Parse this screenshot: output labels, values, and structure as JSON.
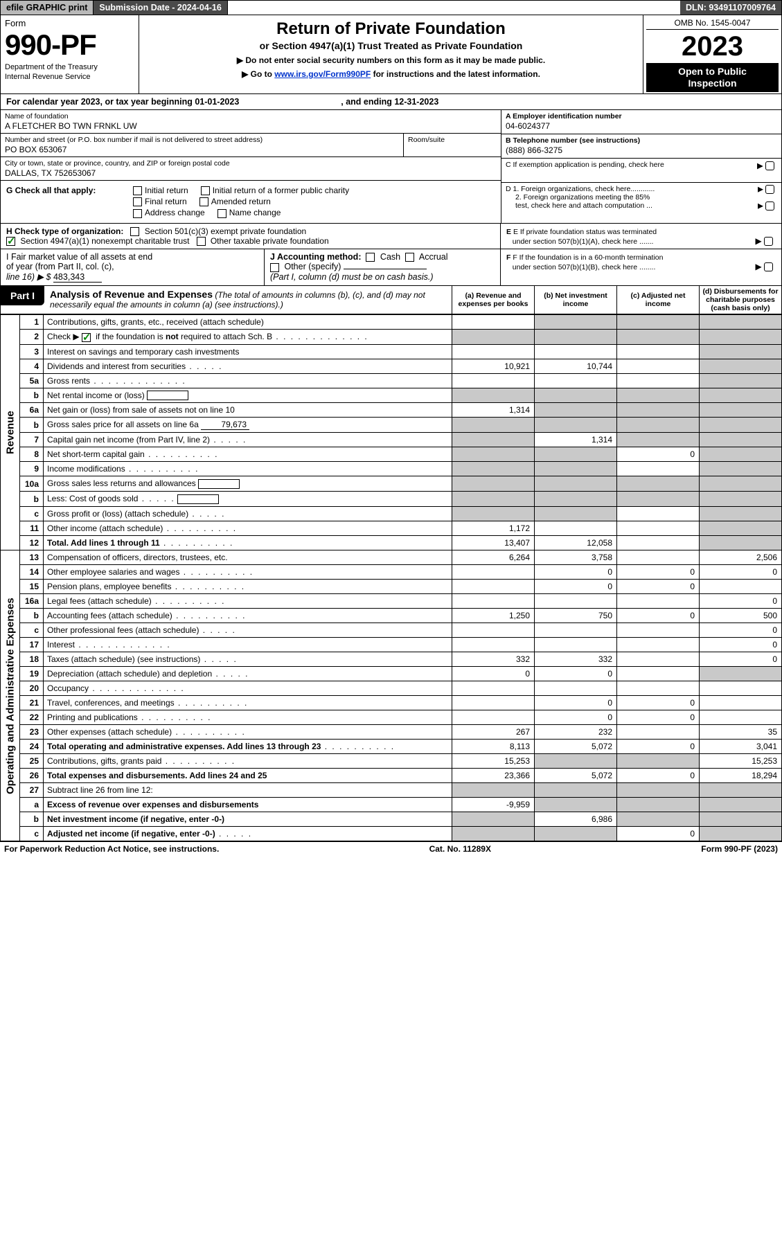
{
  "colors": {
    "topbar_grey": "#b8b8b8",
    "topbar_dark": "#4a4a4a",
    "black": "#000000",
    "grey_cell": "#c9c9c9",
    "link": "#0033cc",
    "check_green": "#0a8a0a"
  },
  "topbar": {
    "efile": "efile GRAPHIC print",
    "submission": "Submission Date - 2024-04-16",
    "dln": "DLN: 93491107009764"
  },
  "header": {
    "form_word": "Form",
    "form_num": "990-PF",
    "dept1": "Department of the Treasury",
    "dept2": "Internal Revenue Service",
    "title": "Return of Private Foundation",
    "subtitle": "or Section 4947(a)(1) Trust Treated as Private Foundation",
    "inst1": "▶ Do not enter social security numbers on this form as it may be made public.",
    "inst2_pre": "▶ Go to ",
    "inst2_link": "www.irs.gov/Form990PF",
    "inst2_post": " for instructions and the latest information.",
    "omb": "OMB No. 1545-0047",
    "year": "2023",
    "open1": "Open to Public",
    "open2": "Inspection"
  },
  "calrow": {
    "t1": "For calendar year 2023, or tax year beginning 01-01-2023",
    "t2": ", and ending 12-31-2023"
  },
  "ident": {
    "name_lbl": "Name of foundation",
    "name_val": "A FLETCHER BO TWN FRNKL UW",
    "addr_lbl": "Number and street (or P.O. box number if mail is not delivered to street address)",
    "addr_val": "PO BOX 653067",
    "suite_lbl": "Room/suite",
    "city_lbl": "City or town, state or province, country, and ZIP or foreign postal code",
    "city_val": "DALLAS, TX  752653067",
    "A_lbl": "A Employer identification number",
    "A_val": "04-6024377",
    "B_lbl": "B Telephone number (see instructions)",
    "B_val": "(888) 866-3275",
    "C_lbl": "C If exemption application is pending, check here",
    "D1": "D 1. Foreign organizations, check here............",
    "D2a": "2. Foreign organizations meeting the 85%",
    "D2b": "test, check here and attach computation ...",
    "E1": "E If private foundation status was terminated",
    "E2": "under section 507(b)(1)(A), check here .......",
    "F1": "F If the foundation is in a 60-month termination",
    "F2": "under section 507(b)(1)(B), check here ........"
  },
  "G": {
    "lbl": "G Check all that apply:",
    "c1": "Initial return",
    "c2": "Initial return of a former public charity",
    "c3": "Final return",
    "c4": "Amended return",
    "c5": "Address change",
    "c6": "Name change"
  },
  "H": {
    "lbl": "H Check type of organization:",
    "c1": "Section 501(c)(3) exempt private foundation",
    "c2": "Section 4947(a)(1) nonexempt charitable trust",
    "c3": "Other taxable private foundation"
  },
  "I": {
    "t1": "I Fair market value of all assets at end",
    "t2": "of year (from Part II, col. (c),",
    "t3_pre": "line 16) ▶ $ ",
    "t3_val": "483,343"
  },
  "J": {
    "lbl": "J Accounting method:",
    "c1": "Cash",
    "c2": "Accrual",
    "c3": "Other (specify)",
    "note": "(Part I, column (d) must be on cash basis.)"
  },
  "part1": {
    "tag": "Part I",
    "title": "Analysis of Revenue and Expenses",
    "sub": " (The total of amounts in columns (b), (c), and (d) may not necessarily equal the amounts in column (a) (see instructions).)",
    "col_a": "(a) Revenue and expenses per books",
    "col_b": "(b) Net investment income",
    "col_c": "(c) Adjusted net income",
    "col_d": "(d) Disbursements for charitable purposes (cash basis only)"
  },
  "sides": {
    "rev": "Revenue",
    "exp": "Operating and Administrative Expenses"
  },
  "rows": [
    {
      "n": "1",
      "d": "Contributions, gifts, grants, etc., received (attach schedule)",
      "a": "",
      "b": "g",
      "c": "g",
      "dv": "g"
    },
    {
      "n": "2",
      "d": "Check ▶ [x] if the foundation is not required to attach Sch. B",
      "a": "g",
      "b": "g",
      "c": "g",
      "dv": "g",
      "check": true,
      "dots": "long"
    },
    {
      "n": "3",
      "d": "Interest on savings and temporary cash investments",
      "a": "",
      "b": "",
      "c": "",
      "dv": "g"
    },
    {
      "n": "4",
      "d": "Dividends and interest from securities",
      "a": "10,921",
      "b": "10,744",
      "c": "",
      "dv": "g",
      "dots": "short"
    },
    {
      "n": "5a",
      "d": "Gross rents",
      "a": "",
      "b": "",
      "c": "",
      "dv": "g",
      "dots": "long"
    },
    {
      "n": "b",
      "d": "Net rental income or (loss)",
      "a": "g",
      "b": "g",
      "c": "g",
      "dv": "g",
      "box": true
    },
    {
      "n": "6a",
      "d": "Net gain or (loss) from sale of assets not on line 10",
      "a": "1,314",
      "b": "g",
      "c": "g",
      "dv": "g"
    },
    {
      "n": "b",
      "d": "Gross sales price for all assets on line 6a",
      "a": "g",
      "b": "g",
      "c": "g",
      "dv": "g",
      "sub": "79,673"
    },
    {
      "n": "7",
      "d": "Capital gain net income (from Part IV, line 2)",
      "a": "g",
      "b": "1,314",
      "c": "g",
      "dv": "g",
      "dots": "short"
    },
    {
      "n": "8",
      "d": "Net short-term capital gain",
      "a": "g",
      "b": "g",
      "c": "0",
      "dv": "g",
      "dots": "leader"
    },
    {
      "n": "9",
      "d": "Income modifications",
      "a": "g",
      "b": "g",
      "c": "",
      "dv": "g",
      "dots": "leader"
    },
    {
      "n": "10a",
      "d": "Gross sales less returns and allowances",
      "a": "g",
      "b": "g",
      "c": "g",
      "dv": "g",
      "box": true
    },
    {
      "n": "b",
      "d": "Less: Cost of goods sold",
      "a": "g",
      "b": "g",
      "c": "g",
      "dv": "g",
      "box": true,
      "dots": "short"
    },
    {
      "n": "c",
      "d": "Gross profit or (loss) (attach schedule)",
      "a": "g",
      "b": "g",
      "c": "",
      "dv": "g",
      "dots": "short"
    },
    {
      "n": "11",
      "d": "Other income (attach schedule)",
      "a": "1,172",
      "b": "",
      "c": "",
      "dv": "g",
      "dots": "leader"
    },
    {
      "n": "12",
      "d": "Total. Add lines 1 through 11",
      "a": "13,407",
      "b": "12,058",
      "c": "",
      "dv": "g",
      "bold": true,
      "dots": "leader"
    },
    {
      "n": "13",
      "d": "Compensation of officers, directors, trustees, etc.",
      "a": "6,264",
      "b": "3,758",
      "c": "",
      "dv": "2,506"
    },
    {
      "n": "14",
      "d": "Other employee salaries and wages",
      "a": "",
      "b": "0",
      "c": "0",
      "dv": "0",
      "dots": "leader"
    },
    {
      "n": "15",
      "d": "Pension plans, employee benefits",
      "a": "",
      "b": "0",
      "c": "0",
      "dv": "",
      "dots": "leader"
    },
    {
      "n": "16a",
      "d": "Legal fees (attach schedule)",
      "a": "",
      "b": "",
      "c": "",
      "dv": "0",
      "dots": "leader"
    },
    {
      "n": "b",
      "d": "Accounting fees (attach schedule)",
      "a": "1,250",
      "b": "750",
      "c": "0",
      "dv": "500",
      "dots": "leader"
    },
    {
      "n": "c",
      "d": "Other professional fees (attach schedule)",
      "a": "",
      "b": "",
      "c": "",
      "dv": "0",
      "dots": "short"
    },
    {
      "n": "17",
      "d": "Interest",
      "a": "",
      "b": "",
      "c": "",
      "dv": "0",
      "dots": "long"
    },
    {
      "n": "18",
      "d": "Taxes (attach schedule) (see instructions)",
      "a": "332",
      "b": "332",
      "c": "",
      "dv": "0",
      "dots": "short"
    },
    {
      "n": "19",
      "d": "Depreciation (attach schedule) and depletion",
      "a": "0",
      "b": "0",
      "c": "",
      "dv": "g",
      "dots": "short"
    },
    {
      "n": "20",
      "d": "Occupancy",
      "a": "",
      "b": "",
      "c": "",
      "dv": "",
      "dots": "long"
    },
    {
      "n": "21",
      "d": "Travel, conferences, and meetings",
      "a": "",
      "b": "0",
      "c": "0",
      "dv": "",
      "dots": "leader"
    },
    {
      "n": "22",
      "d": "Printing and publications",
      "a": "",
      "b": "0",
      "c": "0",
      "dv": "",
      "dots": "leader"
    },
    {
      "n": "23",
      "d": "Other expenses (attach schedule)",
      "a": "267",
      "b": "232",
      "c": "",
      "dv": "35",
      "dots": "leader"
    },
    {
      "n": "24",
      "d": "Total operating and administrative expenses. Add lines 13 through 23",
      "a": "8,113",
      "b": "5,072",
      "c": "0",
      "dv": "3,041",
      "bold": true,
      "dots": "leader"
    },
    {
      "n": "25",
      "d": "Contributions, gifts, grants paid",
      "a": "15,253",
      "b": "g",
      "c": "g",
      "dv": "15,253",
      "dots": "leader"
    },
    {
      "n": "26",
      "d": "Total expenses and disbursements. Add lines 24 and 25",
      "a": "23,366",
      "b": "5,072",
      "c": "0",
      "dv": "18,294",
      "bold": true
    },
    {
      "n": "27",
      "d": "Subtract line 26 from line 12:",
      "a": "g",
      "b": "g",
      "c": "g",
      "dv": "g"
    },
    {
      "n": "a",
      "d": "Excess of revenue over expenses and disbursements",
      "a": "-9,959",
      "b": "g",
      "c": "g",
      "dv": "g",
      "bold": true
    },
    {
      "n": "b",
      "d": "Net investment income (if negative, enter -0-)",
      "a": "g",
      "b": "6,986",
      "c": "g",
      "dv": "g",
      "bold": true
    },
    {
      "n": "c",
      "d": "Adjusted net income (if negative, enter -0-)",
      "a": "g",
      "b": "g",
      "c": "0",
      "dv": "g",
      "bold": true,
      "dots": "short"
    }
  ],
  "footer": {
    "left": "For Paperwork Reduction Act Notice, see instructions.",
    "mid": "Cat. No. 11289X",
    "right": "Form 990-PF (2023)"
  }
}
